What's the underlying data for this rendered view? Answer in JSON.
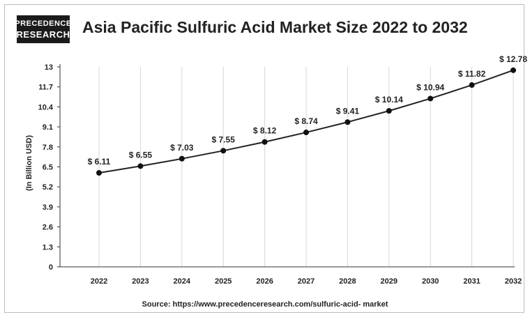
{
  "logo": {
    "line1": "PRECEDENCE",
    "line2": "RESEARCH"
  },
  "chart_data": {
    "type": "line",
    "title": "Asia Pacific Sulfuric Acid Market Size 2022 to 2032",
    "xlabel": "",
    "ylabel": "(In Billion USD)",
    "categories": [
      "2022",
      "2023",
      "2024",
      "2025",
      "2026",
      "2027",
      "2028",
      "2029",
      "2030",
      "2031",
      "2032"
    ],
    "series": [
      {
        "values": [
          6.11,
          6.55,
          7.03,
          7.55,
          8.12,
          8.74,
          9.41,
          10.14,
          10.94,
          11.82,
          12.78
        ]
      }
    ],
    "data_labels": [
      "$ 6.11",
      "$ 6.55",
      "$ 7.03",
      "$ 7.55",
      "$ 8.12",
      "$ 8.74",
      "$ 9.41",
      "$ 10.14",
      "$ 10.94",
      "$ 11.82",
      "$ 12.78"
    ],
    "yticks": [
      "0",
      "1.3",
      "2.6",
      "3.9",
      "5.2",
      "6.5",
      "7.8",
      "9.1",
      "10.4",
      "11.7",
      "13"
    ],
    "ylim": [
      0,
      13
    ],
    "grid": "vertical",
    "legend": "none",
    "colors": {
      "line": "#222222",
      "marker": "#111111",
      "grid": "#d6d6d6"
    }
  },
  "source": "Source: https://www.precedenceresearch.com/sulfuric-acid- market"
}
